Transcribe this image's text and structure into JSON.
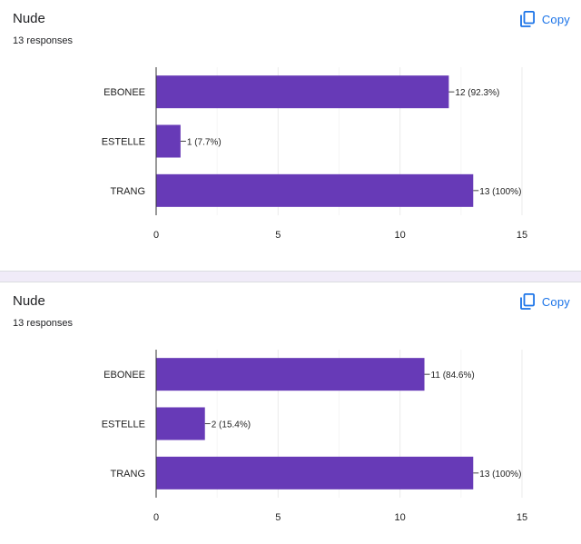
{
  "cards": [
    {
      "title": "Nude",
      "subtitle": "13 responses",
      "copy_label": "Copy",
      "copy_icon": "copy-icon"
    },
    {
      "title": "Nude",
      "subtitle": "13 responses",
      "copy_label": "Copy",
      "copy_icon": "copy-icon"
    }
  ],
  "colors": {
    "bar": "#673ab7",
    "accent": "#1a73e8",
    "separator": "#f0ebf8"
  },
  "chart_data": [
    {
      "type": "bar",
      "orientation": "horizontal",
      "categories": [
        "EBONEE",
        "ESTELLE",
        "TRANG"
      ],
      "values": [
        12,
        1,
        13
      ],
      "data_labels": [
        "12 (92.3%)",
        "1 (7.7%)",
        "13 (100%)"
      ],
      "xlim": [
        0,
        15
      ],
      "xticks": [
        0,
        5,
        10,
        15
      ],
      "grid": true
    },
    {
      "type": "bar",
      "orientation": "horizontal",
      "categories": [
        "EBONEE",
        "ESTELLE",
        "TRANG"
      ],
      "values": [
        11,
        2,
        13
      ],
      "data_labels": [
        "11 (84.6%)",
        "2 (15.4%)",
        "13 (100%)"
      ],
      "xlim": [
        0,
        15
      ],
      "xticks": [
        0,
        5,
        10,
        15
      ],
      "grid": true
    }
  ]
}
